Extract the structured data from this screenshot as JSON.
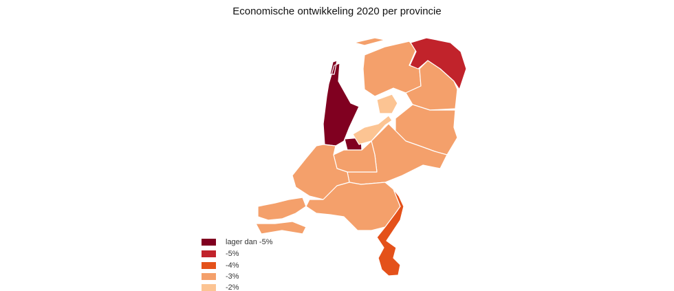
{
  "title": "Economische ontwikkeling 2020 per provincie",
  "legend": [
    {
      "label": "lager dan -5%",
      "color": "#800020"
    },
    {
      "label": "-5%",
      "color": "#c1232b"
    },
    {
      "label": "-4%",
      "color": "#e4511a"
    },
    {
      "label": "-3%",
      "color": "#f4a06b"
    },
    {
      "label": "-2%",
      "color": "#fcc493"
    }
  ],
  "regions": {
    "noord_holland": "lager dan -5%",
    "groningen": "-5%",
    "limburg": "-4%",
    "friesland": "-3%",
    "drenthe": "-3%",
    "overijssel": "-3%",
    "gelderland": "-3%",
    "utrecht": "-3%",
    "zuid_holland": "-3%",
    "zeeland": "-3%",
    "noord_brabant": "-3%",
    "flevoland": "-2%"
  }
}
